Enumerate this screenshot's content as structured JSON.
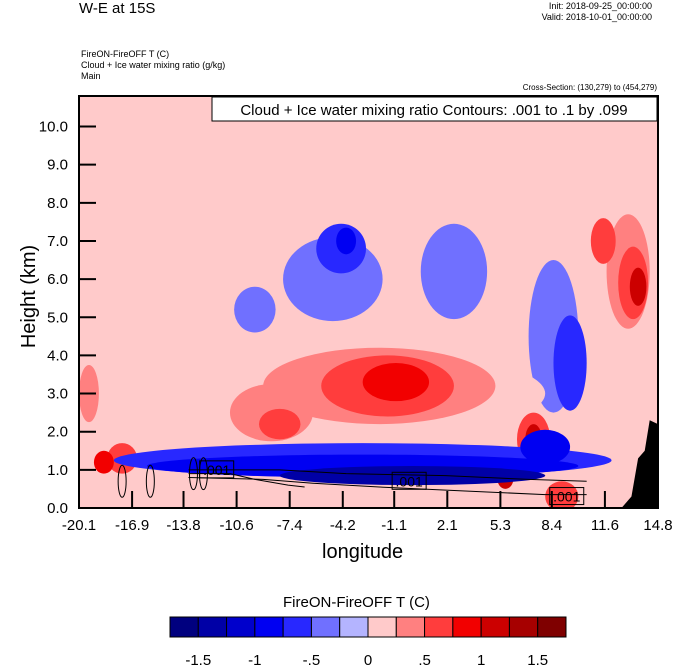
{
  "header": {
    "title": "W-E at 15S",
    "init": "Init: 2018-09-25_00:00:00",
    "valid": "Valid: 2018-10-01_00:00:00",
    "subtitles": [
      "FireON-FireOFF T   (C)",
      "Cloud + Ice water mixing ratio   (g/kg)",
      "Main"
    ],
    "cross_section": "Cross-Section: (130,279) to (454,279)"
  },
  "chart_data": {
    "type": "heatmap",
    "title": "W-E at 15S",
    "xlabel": "longitude",
    "ylabel": "Height (km)",
    "xlim": [
      -20.1,
      14.8
    ],
    "ylim": [
      0.0,
      10.8
    ],
    "x_ticks": [
      "-20.1",
      "-16.9",
      "-13.8",
      "-10.6",
      "-7.4",
      "-4.2",
      "-1.1",
      "2.1",
      "5.3",
      "8.4",
      "11.6",
      "14.8"
    ],
    "x_tick_values": [
      -20.1,
      -16.9,
      -13.8,
      -10.6,
      -7.4,
      -4.2,
      -1.1,
      2.1,
      5.3,
      8.4,
      11.6,
      14.8
    ],
    "y_ticks": [
      "0.0",
      "1.0",
      "2.0",
      "3.0",
      "4.0",
      "5.0",
      "6.0",
      "7.0",
      "8.0",
      "9.0",
      "10.0"
    ],
    "y_tick_values": [
      0,
      1,
      2,
      3,
      4,
      5,
      6,
      7,
      8,
      9,
      10
    ],
    "contour_info": "Cloud + Ice water mixing ratio Contours: .001 to .1 by .099",
    "contour_labels": [
      ".001",
      ".001",
      ".001"
    ],
    "background_level": 0,
    "features": [
      {
        "x": -15.5,
        "y": 6.8,
        "w": 4.5,
        "h": 6.0,
        "v": 0.1
      },
      {
        "x": -10.5,
        "y": 7.2,
        "w": 3.0,
        "h": 5.5,
        "v": 0.1
      },
      {
        "x": -2.5,
        "y": 7.8,
        "w": 3.5,
        "h": 4.0,
        "v": 0.1
      },
      {
        "x": 6.5,
        "y": 7.0,
        "w": 3.5,
        "h": 5.5,
        "v": 0.1
      },
      {
        "x": -4.8,
        "y": 6.0,
        "w": 6.0,
        "h": 2.2,
        "v": -0.35
      },
      {
        "x": -4.3,
        "y": 6.8,
        "w": 3.0,
        "h": 1.3,
        "v": -0.6
      },
      {
        "x": -4.0,
        "y": 7.0,
        "w": 1.2,
        "h": 0.7,
        "v": -0.9
      },
      {
        "x": -9.5,
        "y": 5.2,
        "w": 2.5,
        "h": 1.2,
        "v": -0.35
      },
      {
        "x": 2.5,
        "y": 6.2,
        "w": 4.0,
        "h": 2.5,
        "v": -0.35
      },
      {
        "x": 8.5,
        "y": 4.5,
        "w": 3.0,
        "h": 4.0,
        "v": -0.35
      },
      {
        "x": 9.5,
        "y": 3.8,
        "w": 2.0,
        "h": 2.5,
        "v": -0.6
      },
      {
        "x": 13.0,
        "y": 6.2,
        "w": 2.6,
        "h": 3.0,
        "v": 0.3
      },
      {
        "x": 13.3,
        "y": 5.9,
        "w": 1.8,
        "h": 1.9,
        "v": 0.6
      },
      {
        "x": 13.6,
        "y": 5.8,
        "w": 1.0,
        "h": 1.0,
        "v": 1.2
      },
      {
        "x": 11.5,
        "y": 7.0,
        "w": 1.5,
        "h": 1.2,
        "v": 0.6
      },
      {
        "x": -4.0,
        "y": 3.0,
        "w": 24.0,
        "h": 2.4,
        "v": 0.1
      },
      {
        "x": -2.0,
        "y": 3.2,
        "w": 14.0,
        "h": 2.0,
        "v": 0.3
      },
      {
        "x": -1.5,
        "y": 3.2,
        "w": 8.0,
        "h": 1.6,
        "v": 0.6
      },
      {
        "x": -1.0,
        "y": 3.3,
        "w": 4.0,
        "h": 1.0,
        "v": 0.9
      },
      {
        "x": -8.5,
        "y": 2.5,
        "w": 5.0,
        "h": 1.5,
        "v": 0.3
      },
      {
        "x": -8.0,
        "y": 2.2,
        "w": 2.5,
        "h": 0.8,
        "v": 0.6
      },
      {
        "x": -19.5,
        "y": 3.0,
        "w": 1.2,
        "h": 1.5,
        "v": 0.3
      },
      {
        "x": -17.5,
        "y": 1.3,
        "w": 1.8,
        "h": 0.8,
        "v": 0.6
      },
      {
        "x": -18.6,
        "y": 1.2,
        "w": 1.2,
        "h": 0.6,
        "v": 0.9
      },
      {
        "x": 7.3,
        "y": 1.8,
        "w": 2.0,
        "h": 1.4,
        "v": 0.6
      },
      {
        "x": 7.3,
        "y": 1.8,
        "w": 1.0,
        "h": 0.8,
        "v": 1.2
      },
      {
        "x": 5.6,
        "y": 0.8,
        "w": 1.0,
        "h": 0.6,
        "v": 1.2
      },
      {
        "x": 9.0,
        "y": 0.3,
        "w": 2.0,
        "h": 0.8,
        "v": 0.6
      },
      {
        "x": -3.0,
        "y": 1.25,
        "w": 30.0,
        "h": 0.9,
        "v": -0.6
      },
      {
        "x": -3.0,
        "y": 1.1,
        "w": 26.0,
        "h": 0.6,
        "v": -1.0
      },
      {
        "x": 0.0,
        "y": 0.85,
        "w": 16.0,
        "h": 0.5,
        "v": -1.5
      },
      {
        "x": 8.0,
        "y": 1.6,
        "w": 3.0,
        "h": 0.9,
        "v": -0.9
      }
    ],
    "terrain": [
      [
        12.6,
        0.0
      ],
      [
        13.2,
        0.3
      ],
      [
        13.6,
        1.3
      ],
      [
        14.0,
        1.5
      ],
      [
        14.3,
        2.3
      ],
      [
        14.8,
        2.2
      ],
      [
        14.8,
        0.0
      ]
    ],
    "colorbar": {
      "title": "FireON-FireOFF T  (C)",
      "levels": [
        -1.75,
        -1.5,
        -1.25,
        -1.0,
        -0.75,
        -0.5,
        -0.25,
        0.0,
        0.25,
        0.5,
        0.75,
        1.0,
        1.25,
        1.5,
        1.75
      ],
      "colors": [
        "#00007f",
        "#0000a6",
        "#0000cc",
        "#0000f2",
        "#2828ff",
        "#7070ff",
        "#b4b4ff",
        "#ffcaca",
        "#ff8080",
        "#ff3d3d",
        "#f20000",
        "#cc0000",
        "#a60000",
        "#7f0000"
      ],
      "tick_labels": [
        "-1.5",
        "-1",
        "-.5",
        "0",
        ".5",
        "1",
        "1.5"
      ]
    }
  }
}
